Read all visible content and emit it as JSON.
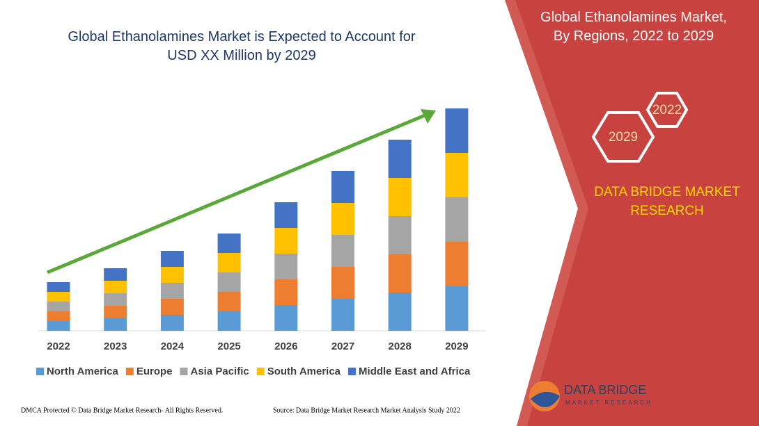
{
  "chart_data": {
    "type": "stacked_bar",
    "title": "Global Ethanolamines Market is Expected to Account for USD XX Million by 2029",
    "categories": [
      "2022",
      "2023",
      "2024",
      "2025",
      "2026",
      "2027",
      "2028",
      "2029"
    ],
    "series": [
      {
        "name": "North America",
        "color": "#5b9bd5",
        "values": [
          14,
          18,
          23,
          28,
          37,
          46,
          55,
          64
        ]
      },
      {
        "name": "Europe",
        "color": "#ed7d31",
        "values": [
          14,
          18,
          23,
          28,
          37,
          46,
          55,
          64
        ]
      },
      {
        "name": "Asia Pacific",
        "color": "#a5a5a5",
        "values": [
          14,
          18,
          23,
          28,
          37,
          46,
          55,
          64
        ]
      },
      {
        "name": "South America",
        "color": "#ffc000",
        "values": [
          14,
          18,
          23,
          28,
          37,
          46,
          55,
          64
        ]
      },
      {
        "name": "Middle East and Africa",
        "color": "#4472c4",
        "values": [
          14,
          18,
          23,
          28,
          37,
          46,
          55,
          64
        ]
      }
    ],
    "ylim": [
      0,
      320
    ],
    "legend": "bottom"
  },
  "panel": {
    "title": "Global Ethanolamines Market, By Regions, 2022 to 2029",
    "hex_years": [
      "2022",
      "2029"
    ],
    "brand": "DATA BRIDGE MARKET RESEARCH",
    "logo_name": "DATA BRIDGE",
    "logo_tagline": "MARKET RESEARCH"
  },
  "footer": {
    "left": "DMCA Protected © Data Bridge Market Research- All Rights Reserved.",
    "right": "Source: Data Bridge Market Research Market Analysis Study 2022"
  }
}
